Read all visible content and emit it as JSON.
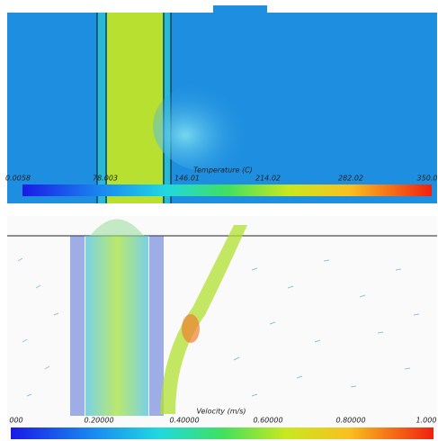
{
  "temperature_panel": {
    "legend_title": "Temperature (C)",
    "legend_labels": [
      "0.0058",
      "78.003",
      "146.01",
      "214.02",
      "282.02",
      "350.0"
    ]
  },
  "velocity_panel": {
    "legend_title": "Velocity (m/s)",
    "legend_labels": [
      "000",
      "0.20000",
      "0.40000",
      "0.60000",
      "0.80000",
      "1.000"
    ]
  }
}
